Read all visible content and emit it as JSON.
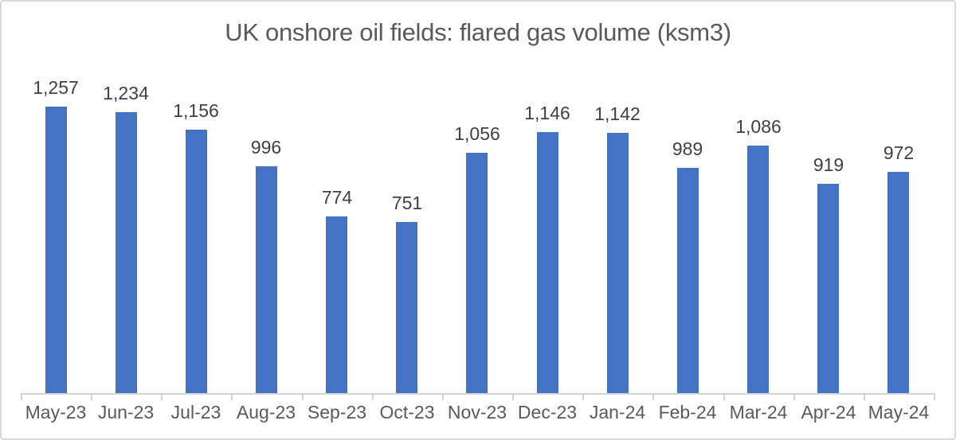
{
  "chart_data": {
    "type": "bar",
    "title": "UK onshore oil fields: flared gas volume (ksm3)",
    "categories": [
      "May-23",
      "Jun-23",
      "Jul-23",
      "Aug-23",
      "Sep-23",
      "Oct-23",
      "Nov-23",
      "Dec-23",
      "Jan-24",
      "Feb-24",
      "Mar-24",
      "Apr-24",
      "May-24"
    ],
    "values": [
      1257,
      1234,
      1156,
      996,
      774,
      751,
      1056,
      1146,
      1142,
      989,
      1086,
      919,
      972
    ],
    "data_labels": [
      "1,257",
      "1,234",
      "1,156",
      "996",
      "774",
      "751",
      "1,056",
      "1,146",
      "1,142",
      "989",
      "1,086",
      "919",
      "972"
    ],
    "xlabel": "",
    "ylabel": "",
    "ylim": [
      0,
      1400
    ],
    "grid": false,
    "legend": "none",
    "series_name": "flared gas volume",
    "bar_color": "#4472C4",
    "title_color": "#595959",
    "value_label_color": "#404040",
    "axis_label_color": "#595959",
    "axis_line_color": "#D2D2D2",
    "frame_border_color": "#D9D9D9"
  }
}
